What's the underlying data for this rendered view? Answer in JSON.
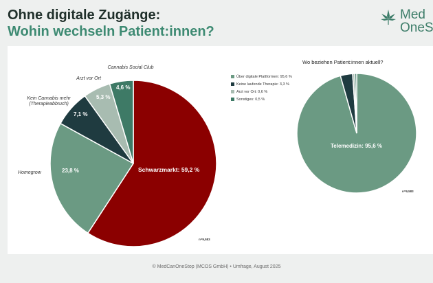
{
  "header": {
    "title_line1": "Ohne digitale Zugänge:",
    "title_line2": "Wohin wechseln Patient:innen?",
    "logo_line1": "Med",
    "logo_line2": "OneS"
  },
  "footer": "© MedCanOneStop (MCOS GmbH) • Umfrage, August 2025",
  "colors": {
    "green_dark": "#2c5a4e",
    "green_mid": "#6b9a83",
    "green_light": "#a8bcb1",
    "red": "#8b0000",
    "navy": "#1f3b40"
  },
  "chart_data": [
    {
      "type": "pie",
      "sample": "n=9,583",
      "slices": [
        {
          "label": "Schwarzmarkt",
          "value_label": "Schwarzmarkt: 59,2 %",
          "value": 59.2,
          "color": "#8b0000"
        },
        {
          "label": "Homegrow",
          "value_label": "23,8 %",
          "value": 23.8,
          "color": "#6b9a83"
        },
        {
          "label": "Kein Cannabis mehr (Therapieabbruch)",
          "value_label": "7,1 %",
          "value": 7.1,
          "color": "#1f3b40"
        },
        {
          "label": "Arzt vor Ort",
          "value_label": "5,3 %",
          "value": 5.3,
          "color": "#a8bcb1"
        },
        {
          "label": "Cannabis Social Club",
          "value_label": "4,6 %",
          "value": 4.6,
          "color": "#3e7a66"
        }
      ]
    },
    {
      "type": "pie",
      "title": "Wo beziehen Patient:innen aktuell?",
      "sample": "n=9,583",
      "slices": [
        {
          "label": "Über digitale Plattformen: 95,6 %",
          "value_label": "Telemedizin: 95,6 %",
          "value": 95.6,
          "color": "#6b9a83"
        },
        {
          "label": "Keine laufende Therapie: 3,3 %",
          "value": 3.3,
          "color": "#1f3b40"
        },
        {
          "label": "Arzt vor Ort: 0,6 %",
          "value": 0.6,
          "color": "#a8bcb1"
        },
        {
          "label": "Sonstiges: 0,5 %",
          "value": 0.5,
          "color": "#3e7a66"
        }
      ]
    }
  ]
}
